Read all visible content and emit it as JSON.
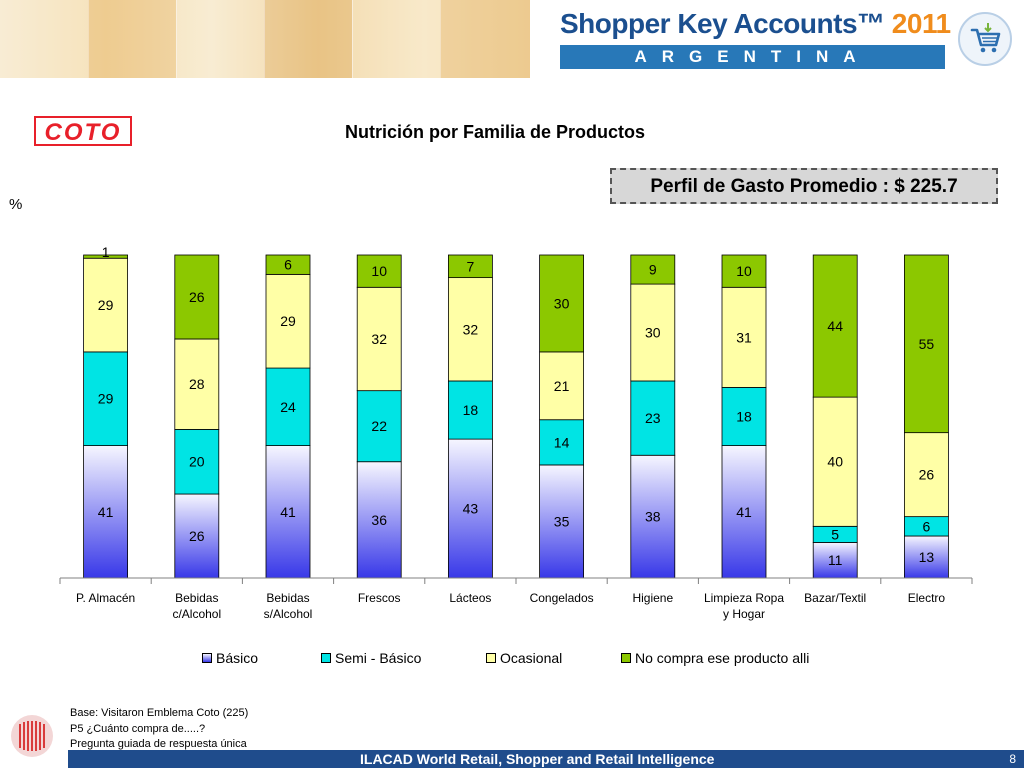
{
  "header": {
    "brand_main": "Shopper Key Accounts™",
    "brand_year": "2011",
    "country": "ARGENTINA"
  },
  "logo_text": "COTO",
  "spend_box": "Perfil de Gasto Promedio : $ 225.7",
  "colors": {
    "basico": "#3838e8",
    "semi_basico": "#00e4e4",
    "ocasional": "#ffffa6",
    "no_compra": "#8cc800",
    "banner_blue": "#2878b8",
    "footer_blue": "#1f4c8c"
  },
  "chart_data": {
    "type": "bar",
    "stacked": true,
    "title": "Nutrición por Familia de Productos",
    "ylabel": "%",
    "ylim": [
      0,
      100
    ],
    "categories": [
      "P. Almacén",
      "Bebidas c/Alcohol",
      "Bebidas s/Alcohol",
      "Frescos",
      "Lácteos",
      "Congelados",
      "Higiene",
      "Limpieza Ropa y Hogar",
      "Bazar/Textil",
      "Electro"
    ],
    "category_lines": [
      [
        "P. Almacén"
      ],
      [
        "Bebidas",
        "c/Alcohol"
      ],
      [
        "Bebidas",
        "s/Alcohol"
      ],
      [
        "Frescos"
      ],
      [
        "Lácteos"
      ],
      [
        "Congelados"
      ],
      [
        "Higiene"
      ],
      [
        "Limpieza Ropa",
        "y Hogar"
      ],
      [
        "Bazar/Textil"
      ],
      [
        "Electro"
      ]
    ],
    "series": [
      {
        "name": "Básico",
        "values": [
          41,
          26,
          41,
          36,
          43,
          35,
          38,
          41,
          11,
          13
        ]
      },
      {
        "name": "Semi - Básico",
        "values": [
          29,
          20,
          24,
          22,
          18,
          14,
          23,
          18,
          5,
          6
        ]
      },
      {
        "name": "Ocasional",
        "values": [
          29,
          28,
          29,
          32,
          32,
          21,
          30,
          31,
          40,
          26
        ]
      },
      {
        "name": "No compra ese producto alli",
        "values": [
          1,
          26,
          6,
          10,
          7,
          30,
          9,
          10,
          44,
          55
        ]
      }
    ],
    "legend_position": "bottom",
    "grid": false
  },
  "footnotes": [
    "Base: Visitaron Emblema Coto (225)",
    "P5 ¿Cuánto compra de.....?",
    "Pregunta guiada de respuesta única"
  ],
  "footer": {
    "text": "ILACAD World Retail, Shopper and Retail Intelligence",
    "page_number": "8"
  }
}
